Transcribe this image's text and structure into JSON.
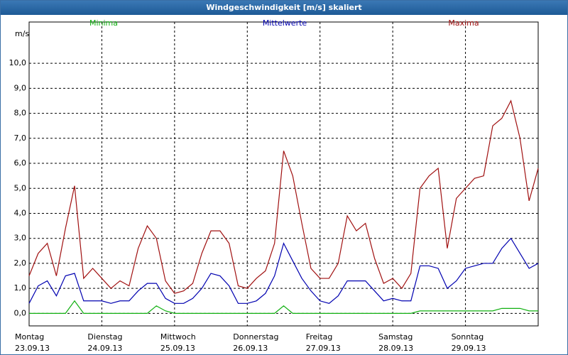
{
  "chart_data": {
    "type": "line",
    "title": "Windgeschwindigkeit [m/s] skaliert",
    "ylabel": "m/s",
    "x": [
      0,
      3,
      6,
      9,
      12,
      15,
      18,
      21,
      24,
      27,
      30,
      33,
      36,
      39,
      42,
      45,
      48,
      51,
      54,
      57,
      60,
      63,
      66,
      69,
      72,
      75,
      78,
      81,
      84,
      87,
      90,
      93,
      96,
      99,
      102,
      105,
      108,
      111,
      114,
      117,
      120,
      123,
      126,
      129,
      132,
      135,
      138,
      141,
      144,
      147,
      150,
      153,
      156,
      159,
      162,
      165,
      168
    ],
    "xlim": [
      0,
      168
    ],
    "xticks": [
      {
        "value": 0,
        "label": "Montag"
      },
      {
        "value": 24,
        "label": "Dienstag"
      },
      {
        "value": 48,
        "label": "Mittwoch"
      },
      {
        "value": 72,
        "label": "Donnerstag"
      },
      {
        "value": 96,
        "label": "Freitag"
      },
      {
        "value": 120,
        "label": "Samstag"
      },
      {
        "value": 144,
        "label": "Sonntag"
      }
    ],
    "xtick_dates": [
      "23.09.13",
      "24.09.13",
      "25.09.13",
      "26.09.13",
      "27.09.13",
      "28.09.13",
      "29.09.13"
    ],
    "ylim": [
      -0.5,
      11.65
    ],
    "yticks": [
      {
        "value": 0,
        "label": "0,0"
      },
      {
        "value": 1,
        "label": "1,0"
      },
      {
        "value": 2,
        "label": "2,0"
      },
      {
        "value": 3,
        "label": "3,0"
      },
      {
        "value": 4,
        "label": "4,0"
      },
      {
        "value": 5,
        "label": "5,0"
      },
      {
        "value": 6,
        "label": "6,0"
      },
      {
        "value": 7,
        "label": "7,0"
      },
      {
        "value": 8,
        "label": "8,0"
      },
      {
        "value": 9,
        "label": "9,0"
      },
      {
        "value": 10,
        "label": "10,0"
      }
    ],
    "grid": true,
    "series": [
      {
        "name": "Minima",
        "color": "#10b010",
        "values": [
          0,
          0,
          0,
          0,
          0,
          0.5,
          0,
          0,
          0,
          0,
          0,
          0,
          0,
          0,
          0.3,
          0.1,
          0,
          0,
          0,
          0,
          0,
          0,
          0,
          0,
          0,
          0,
          0,
          0,
          0.3,
          0,
          0,
          0,
          0,
          0,
          0,
          0,
          0,
          0,
          0,
          0,
          0,
          0,
          0,
          0.1,
          0.1,
          0.1,
          0.1,
          0.1,
          0.1,
          0.1,
          0.1,
          0.1,
          0.2,
          0.2,
          0.2,
          0.1,
          0.1
        ]
      },
      {
        "name": "Mittelwerte",
        "color": "#0000b0",
        "values": [
          0.4,
          1.1,
          1.3,
          0.7,
          1.5,
          1.6,
          0.5,
          0.5,
          0.5,
          0.4,
          0.5,
          0.5,
          0.9,
          1.2,
          1.2,
          0.6,
          0.4,
          0.4,
          0.6,
          1.0,
          1.6,
          1.5,
          1.1,
          0.4,
          0.4,
          0.5,
          0.8,
          1.5,
          2.8,
          2.1,
          1.4,
          0.9,
          0.5,
          0.4,
          0.7,
          1.3,
          1.3,
          1.3,
          0.9,
          0.5,
          0.6,
          0.5,
          0.5,
          1.9,
          1.9,
          1.8,
          1.0,
          1.3,
          1.8,
          1.9,
          2.0,
          2.0,
          2.6,
          3.0,
          2.4,
          1.8,
          2.0
        ]
      },
      {
        "name": "Maxima",
        "color": "#a01010",
        "values": [
          1.5,
          2.4,
          2.8,
          1.5,
          3.4,
          5.1,
          1.4,
          1.8,
          1.4,
          1.0,
          1.3,
          1.1,
          2.6,
          3.5,
          3.0,
          1.3,
          0.8,
          0.9,
          1.2,
          2.4,
          3.3,
          3.3,
          2.8,
          1.1,
          1.0,
          1.4,
          1.7,
          2.8,
          6.5,
          5.5,
          3.6,
          1.8,
          1.4,
          1.4,
          2.0,
          3.9,
          3.3,
          3.6,
          2.2,
          1.2,
          1.4,
          1.0,
          1.6,
          5.0,
          5.5,
          5.8,
          2.6,
          4.6,
          5.0,
          5.4,
          5.5,
          7.5,
          7.8,
          8.5,
          7.0,
          4.5,
          5.8
        ]
      }
    ]
  }
}
